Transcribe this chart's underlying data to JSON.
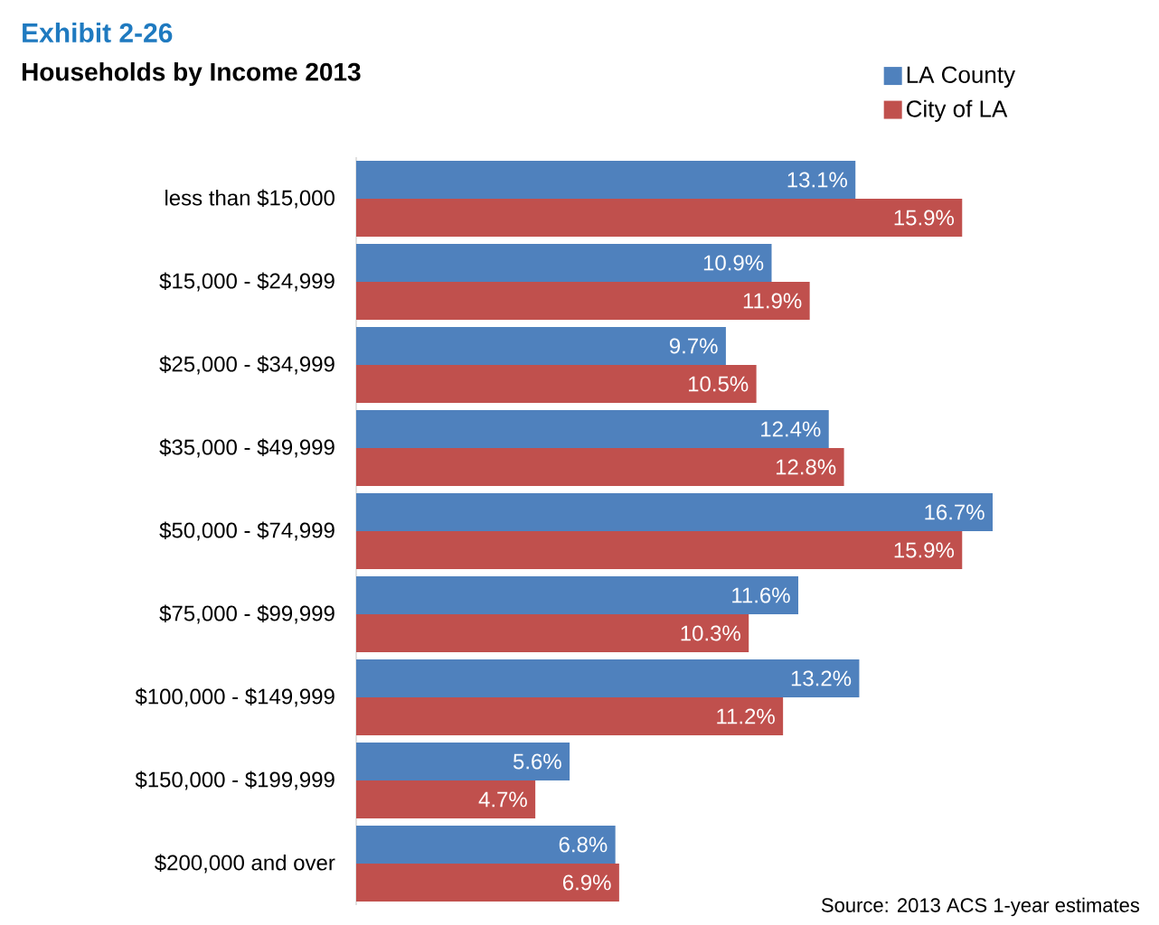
{
  "chart_data": {
    "type": "bar",
    "orientation": "horizontal",
    "title": "Exhibit 2-26",
    "subtitle": "Households by Income 2013",
    "categories": [
      "less than $15,000",
      "$15,000 - $24,999",
      "$25,000 - $34,999",
      "$35,000 - $49,999",
      "$50,000 - $74,999",
      "$75,000 - $99,999",
      "$100,000 - $149,999",
      "$150,000 - $199,999",
      "$200,000 and over"
    ],
    "series": [
      {
        "name": "LA County",
        "color": "#4f81bd",
        "values": [
          13.1,
          10.9,
          9.7,
          12.4,
          16.7,
          11.6,
          13.2,
          5.6,
          6.8
        ],
        "value_labels": [
          "13.1%",
          "10.9%",
          "9.7%",
          "12.4%",
          "16.7%",
          "11.6%",
          "13.2%",
          "5.6%",
          "6.8%"
        ]
      },
      {
        "name": "City of LA",
        "color": "#c0504d",
        "values": [
          15.9,
          11.9,
          10.5,
          12.8,
          15.9,
          10.3,
          11.2,
          4.7,
          6.9
        ],
        "value_labels": [
          "15.9%",
          "11.9%",
          "10.5%",
          "12.8%",
          "15.9%",
          "10.3%",
          "11.2%",
          "4.7%",
          "6.9%"
        ]
      }
    ],
    "legend": "top right",
    "annotations": [
      "Source: 2013 ACS 1-year estimates"
    ]
  }
}
